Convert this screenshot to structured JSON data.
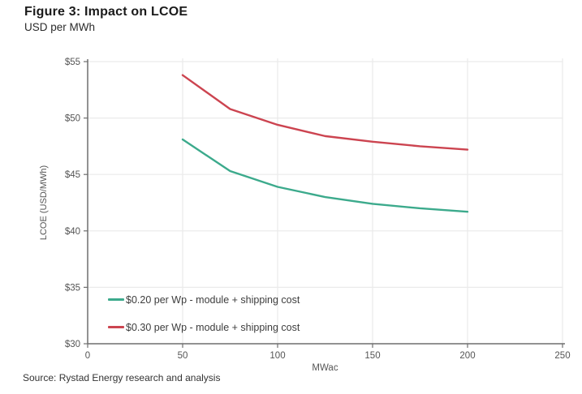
{
  "header": {
    "title": "Figure 3: Impact on LCOE",
    "subtitle": "USD per MWh"
  },
  "footer": {
    "source": "Source: Rystad Energy research and analysis"
  },
  "chart_data": {
    "type": "line",
    "title": "Figure 3: Impact on LCOE",
    "subtitle": "USD per MWh",
    "xlabel": "MWac",
    "ylabel": "LCOE (USD/MWh)",
    "xlim": [
      0,
      250
    ],
    "ylim": [
      30,
      55
    ],
    "x_ticks": [
      0,
      50,
      100,
      150,
      200,
      250
    ],
    "y_ticks": [
      30,
      35,
      40,
      45,
      50,
      55
    ],
    "y_tick_prefix": "$",
    "grid": true,
    "legend_position": "inside-bottom-left",
    "x": [
      50,
      75,
      100,
      125,
      150,
      175,
      200
    ],
    "series": [
      {
        "name": "$0.20 per Wp - module + shipping cost",
        "color": "#3caa8c",
        "values": [
          48.1,
          45.3,
          43.9,
          43.0,
          42.4,
          42.0,
          41.7
        ]
      },
      {
        "name": "$0.30 per Wp - module + shipping cost",
        "color": "#cc4450",
        "values": [
          53.8,
          50.8,
          49.4,
          48.4,
          47.9,
          47.5,
          47.2
        ]
      }
    ],
    "axis_color": "#6e6e6e",
    "grid_color": "#eaeaea",
    "tick_label_color": "#555555"
  }
}
